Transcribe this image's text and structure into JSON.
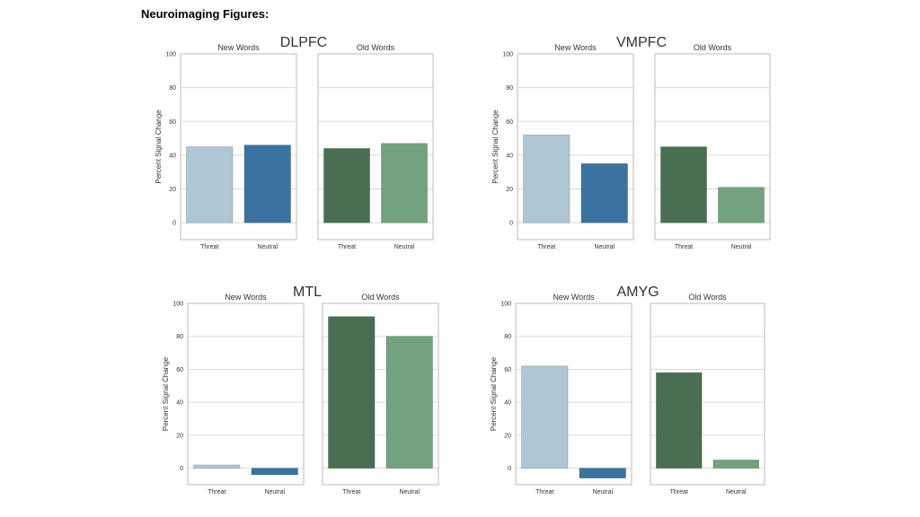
{
  "heading": "Neuroimaging Figures:",
  "colors": {
    "threat_new": "#afc6d4",
    "neutral_new": "#3a73a0",
    "threat_old": "#4a6e52",
    "neutral_old": "#72a27f",
    "grid": "#d9d9d9",
    "frame": "#bbbbbb"
  },
  "chart_data": [
    {
      "type": "bar",
      "title": "DLPFC",
      "ylabel": "Percent Signal Change",
      "ylim": [
        -10,
        100
      ],
      "yticks": [
        0,
        20,
        40,
        60,
        80,
        100
      ],
      "categories": [
        "Threat",
        "Neutral"
      ],
      "grid": true,
      "panels": [
        {
          "name": "New Words",
          "values": [
            45,
            46
          ]
        },
        {
          "name": "Old Words",
          "values": [
            44,
            47
          ]
        }
      ]
    },
    {
      "type": "bar",
      "title": "VMPFC",
      "ylabel": "Percent Signal Change",
      "ylim": [
        -10,
        100
      ],
      "yticks": [
        0,
        20,
        40,
        60,
        80,
        100
      ],
      "categories": [
        "Threat",
        "Neutral"
      ],
      "grid": true,
      "panels": [
        {
          "name": "New Words",
          "values": [
            52,
            35
          ]
        },
        {
          "name": "Old Words",
          "values": [
            45,
            21
          ]
        }
      ]
    },
    {
      "type": "bar",
      "title": "MTL",
      "ylabel": "Percent Signal Change",
      "ylim": [
        -10,
        100
      ],
      "yticks": [
        0,
        20,
        40,
        60,
        80,
        100
      ],
      "categories": [
        "Threat",
        "Neutral"
      ],
      "grid": true,
      "panels": [
        {
          "name": "New Words",
          "values": [
            2,
            -4
          ]
        },
        {
          "name": "Old Words",
          "values": [
            92,
            80
          ]
        }
      ]
    },
    {
      "type": "bar",
      "title": "AMYG",
      "ylabel": "Percent Signal Change",
      "ylim": [
        -10,
        100
      ],
      "yticks": [
        0,
        20,
        40,
        60,
        80,
        100
      ],
      "categories": [
        "Threat",
        "Neutral"
      ],
      "grid": true,
      "panels": [
        {
          "name": "New Words",
          "values": [
            62,
            -6
          ]
        },
        {
          "name": "Old Words",
          "values": [
            58,
            5
          ]
        }
      ]
    }
  ]
}
